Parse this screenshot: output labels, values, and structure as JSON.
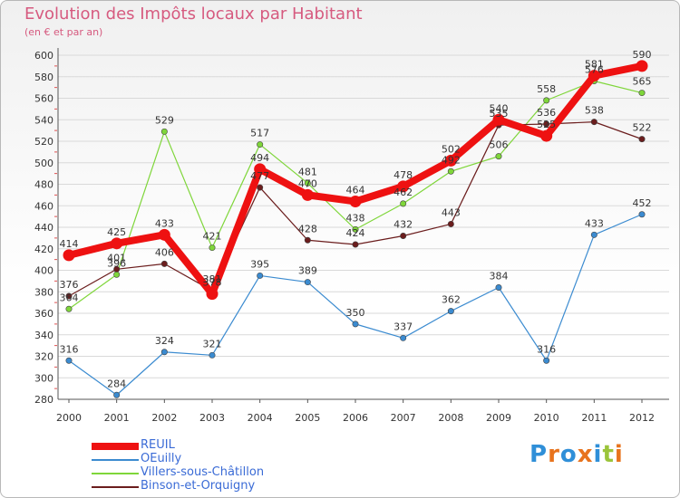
{
  "title": "Evolution des Impôts locaux par Habitant",
  "subtitle": "(en € et par an)",
  "colors": {
    "title": "#d65a7f",
    "grid": "#d9d9d9",
    "axis": "#555555",
    "tick_text": "#333333",
    "legend_text": "#3a6bd6"
  },
  "logo": {
    "letters": [
      "P",
      "r",
      "o",
      "x",
      "i",
      "t",
      "i"
    ],
    "colors": [
      "#2f8fd8",
      "#e8731d",
      "#2f8fd8",
      "#e8731d",
      "#2f8fd8",
      "#9bc43a",
      "#e8731d"
    ]
  },
  "chart_data": {
    "type": "line",
    "title": "Evolution des Impôts locaux par Habitant",
    "subtitle": "(en € et par an)",
    "xlabel": "",
    "ylabel": "",
    "x": [
      "2000",
      "2001",
      "2002",
      "2003",
      "2004",
      "2005",
      "2006",
      "2007",
      "2008",
      "2009",
      "2010",
      "2011",
      "2012"
    ],
    "ylim": [
      280,
      600
    ],
    "yticks": [
      280,
      300,
      320,
      340,
      360,
      380,
      400,
      420,
      440,
      460,
      480,
      500,
      520,
      540,
      560,
      580,
      600
    ],
    "grid": true,
    "legend_position": "bottom-left",
    "series": [
      {
        "name": "OEuilly",
        "color": "#3b8bd0",
        "values": [
          316,
          284,
          324,
          321,
          395,
          389,
          350,
          337,
          362,
          384,
          316,
          433,
          452
        ]
      },
      {
        "name": "Villers-sous-Châtillon",
        "color": "#7fd63a",
        "values": [
          364,
          396,
          529,
          421,
          517,
          481,
          438,
          462,
          492,
          506,
          558,
          576,
          565
        ]
      },
      {
        "name": "Binson-et-Orquigny",
        "color": "#6b1d1d",
        "values": [
          376,
          401,
          406,
          381,
          477,
          428,
          424,
          432,
          443,
          535,
          536,
          538,
          522
        ]
      },
      {
        "name": "REUIL",
        "color": "#ee1111",
        "values": [
          414,
          425,
          433,
          378,
          494,
          470,
          464,
          478,
          502,
          540,
          525,
          581,
          590
        ]
      }
    ],
    "legend_order": [
      "REUIL",
      "OEuilly",
      "Villers-sous-Châtillon",
      "Binson-et-Orquigny"
    ]
  }
}
